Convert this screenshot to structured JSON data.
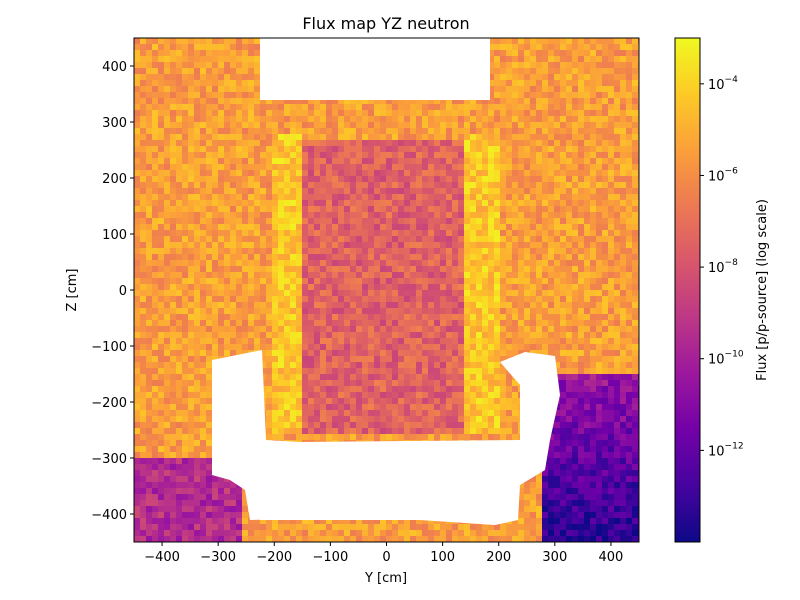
{
  "chart_data": {
    "type": "heatmap",
    "title": "Flux map YZ neutron",
    "xlabel": "Y [cm]",
    "ylabel": "Z [cm]",
    "xlim": [
      -450,
      450
    ],
    "ylim": [
      -450,
      450
    ],
    "x_ticks": [
      -400,
      -300,
      -200,
      -100,
      0,
      100,
      200,
      300,
      400
    ],
    "x_tick_labels": [
      "−400",
      "−300",
      "−200",
      "−100",
      "0",
      "100",
      "200",
      "300",
      "400"
    ],
    "y_ticks": [
      -400,
      -300,
      -200,
      -100,
      0,
      100,
      200,
      300,
      400
    ],
    "y_tick_labels": [
      "−400",
      "−300",
      "−200",
      "−100",
      "0",
      "100",
      "200",
      "300",
      "400"
    ],
    "colormap": "plasma",
    "colorbar": {
      "label": "Flux [p/p-source] (log scale)",
      "scale": "log",
      "range_exponent": [
        -14,
        -3
      ],
      "tick_exponents": [
        -12,
        -10,
        -8,
        -6,
        -4
      ],
      "tick_base": "10"
    },
    "colormap_stops": [
      "#0d0887",
      "#46039f",
      "#7201a8",
      "#9c179e",
      "#bd3786",
      "#d8576b",
      "#ed7953",
      "#fb9f3a",
      "#fdca26",
      "#f0f921"
    ],
    "regions": [
      {
        "name": "left outer field",
        "log10_flux": -5.5
      },
      {
        "name": "right outer field",
        "log10_flux": -5.5
      },
      {
        "name": "left wall (Y ≈ -180)",
        "log10_flux": -4.3
      },
      {
        "name": "right wall (Y ≈ 170)",
        "log10_flux": -4.3
      },
      {
        "name": "central cavity",
        "log10_flux": -7.5
      },
      {
        "name": "lower-left corner",
        "log10_flux": -9.5
      },
      {
        "name": "lower-right corner",
        "log10_flux": -10.5
      }
    ],
    "grid": false
  }
}
